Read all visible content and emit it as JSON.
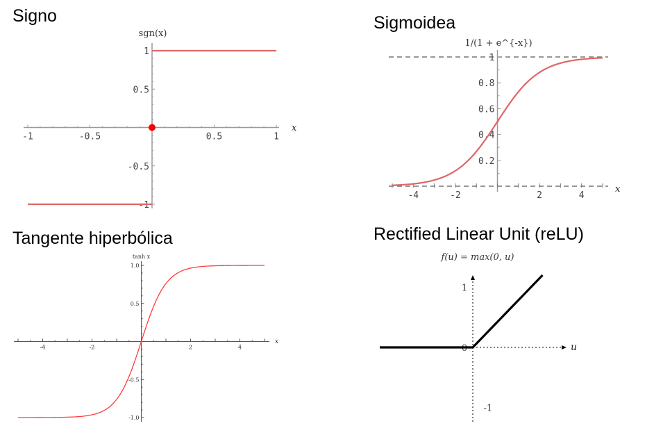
{
  "chart_data": [
    {
      "type": "line",
      "title": "Signo",
      "ylabel": "sgn(x)",
      "xlabel": "x",
      "xlim": [
        -1,
        1
      ],
      "ylim": [
        -1,
        1
      ],
      "x_ticks": [
        "-1",
        "-0.5",
        "0.5",
        "1"
      ],
      "y_ticks": [
        "1",
        "0.5",
        "-0.5",
        "-1"
      ],
      "series": [
        {
          "x": [
            -1,
            0
          ],
          "y": [
            -1,
            -1
          ]
        },
        {
          "x": [
            0,
            1
          ],
          "y": [
            1,
            1
          ]
        }
      ],
      "points": [
        {
          "x": 0,
          "y": 0
        }
      ],
      "line_color": "#e06666",
      "point_color": "#ff0000",
      "grid": false
    },
    {
      "type": "line",
      "title": "Sigmoidea",
      "ylabel": "1/(1 + e^{-x})",
      "xlabel": "x",
      "xlim": [
        -5,
        5
      ],
      "ylim": [
        0,
        1
      ],
      "x_ticks": [
        "-4",
        "-2",
        "2",
        "4"
      ],
      "y_ticks": [
        "1",
        "0.8",
        "0.6",
        "0.4",
        "0.2"
      ],
      "series": [
        {
          "x": [
            -5,
            -4,
            -3,
            -2,
            -1,
            0,
            1,
            2,
            3,
            4,
            5
          ],
          "y": [
            0.007,
            0.018,
            0.047,
            0.119,
            0.269,
            0.5,
            0.731,
            0.881,
            0.953,
            0.982,
            0.993
          ]
        }
      ],
      "asymptotes": [
        0,
        1
      ],
      "line_color": "#e06666",
      "grid": false
    },
    {
      "type": "line",
      "title": "Tangente hiperbólica",
      "ylabel": "tanh x",
      "xlabel": "x",
      "xlim": [
        -5,
        5
      ],
      "ylim": [
        -1,
        1
      ],
      "x_ticks": [
        "-4",
        "-2",
        "2",
        "4"
      ],
      "y_ticks": [
        "1.0",
        "0.5",
        "-0.5",
        "-1.0"
      ],
      "series": [
        {
          "x": [
            -5,
            -4,
            -3,
            -2,
            -1,
            0,
            1,
            2,
            3,
            4,
            5
          ],
          "y": [
            -1.0,
            -0.999,
            -0.995,
            -0.964,
            -0.762,
            0,
            0.762,
            0.964,
            0.995,
            0.999,
            1.0
          ]
        }
      ],
      "line_color": "#ff3b3b",
      "grid": false
    },
    {
      "type": "line",
      "title": "Rectified Linear Unit (reLU)",
      "ylabel": "f(u) = max(0, u)",
      "xlabel": "u",
      "xlim": [
        -1.6,
        1.6
      ],
      "ylim": [
        -1.2,
        1.2
      ],
      "y_ticks": [
        "1",
        "0",
        "-1"
      ],
      "series": [
        {
          "x": [
            -1.6,
            0,
            1.2
          ],
          "y": [
            0,
            0,
            1.2
          ]
        }
      ],
      "line_color": "#000000",
      "grid": false
    }
  ]
}
